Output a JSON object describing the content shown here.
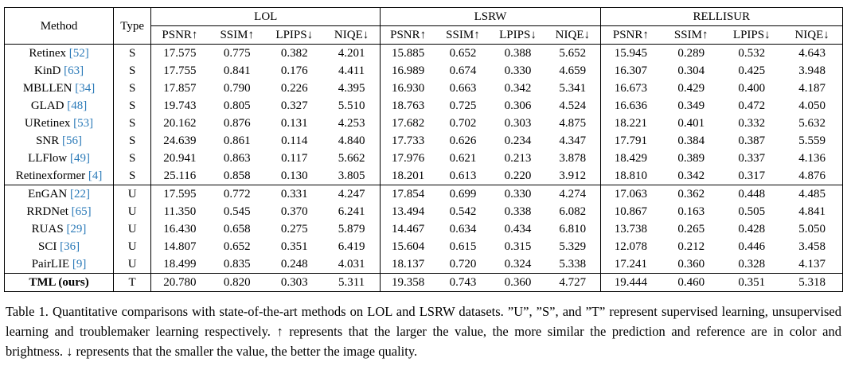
{
  "colors": {
    "citation": "#2b7ab8",
    "text": "#000000",
    "background": "#ffffff"
  },
  "table": {
    "method_header": "Method",
    "type_header": "Type",
    "groups": [
      "LOL",
      "LSRW",
      "RELLISUR"
    ],
    "metrics": [
      "PSNR↑",
      "SSIM↑",
      "LPIPS↓",
      "NIQE↓"
    ],
    "rows": [
      {
        "method": "Retinex",
        "cite": "[52]",
        "type": "S",
        "method_bold": false,
        "section_start": false,
        "values": [
          "17.575",
          "0.775",
          "0.382",
          "4.201",
          "15.885",
          "0.652",
          "0.388",
          "5.652",
          "15.945",
          "0.289",
          "0.532",
          "4.643"
        ],
        "bold": []
      },
      {
        "method": "KinD",
        "cite": "[63]",
        "type": "S",
        "method_bold": false,
        "section_start": false,
        "values": [
          "17.755",
          "0.841",
          "0.176",
          "4.411",
          "16.989",
          "0.674",
          "0.330",
          "4.659",
          "16.307",
          "0.304",
          "0.425",
          "3.948"
        ],
        "bold": []
      },
      {
        "method": "MBLLEN",
        "cite": "[34]",
        "type": "S",
        "method_bold": false,
        "section_start": false,
        "values": [
          "17.857",
          "0.790",
          "0.226",
          "4.395",
          "16.930",
          "0.663",
          "0.342",
          "5.341",
          "16.673",
          "0.429",
          "0.400",
          "4.187"
        ],
        "bold": []
      },
      {
        "method": "GLAD",
        "cite": "[48]",
        "type": "S",
        "method_bold": false,
        "section_start": false,
        "values": [
          "19.743",
          "0.805",
          "0.327",
          "5.510",
          "18.763",
          "0.725",
          "0.306",
          "4.524",
          "16.636",
          "0.349",
          "0.472",
          "4.050"
        ],
        "bold": []
      },
      {
        "method": "URetinex",
        "cite": "[53]",
        "type": "S",
        "method_bold": false,
        "section_start": false,
        "values": [
          "20.162",
          "0.876",
          "0.131",
          "4.253",
          "17.682",
          "0.702",
          "0.303",
          "4.875",
          "18.221",
          "0.401",
          "0.332",
          "5.632"
        ],
        "bold": [
          1
        ]
      },
      {
        "method": "SNR",
        "cite": "[56]",
        "type": "S",
        "method_bold": false,
        "section_start": false,
        "values": [
          "24.639",
          "0.861",
          "0.114",
          "4.840",
          "17.733",
          "0.626",
          "0.234",
          "4.347",
          "17.791",
          "0.384",
          "0.387",
          "5.559"
        ],
        "bold": [
          2
        ]
      },
      {
        "method": "LLFlow",
        "cite": "[49]",
        "type": "S",
        "method_bold": false,
        "section_start": false,
        "values": [
          "20.941",
          "0.863",
          "0.117",
          "5.662",
          "17.976",
          "0.621",
          "0.213",
          "3.878",
          "18.429",
          "0.389",
          "0.337",
          "4.136"
        ],
        "bold": [
          6,
          7
        ]
      },
      {
        "method": "Retinexformer",
        "cite": "[4]",
        "type": "S",
        "method_bold": false,
        "section_start": false,
        "values": [
          "25.116",
          "0.858",
          "0.130",
          "3.805",
          "18.201",
          "0.613",
          "0.220",
          "3.912",
          "18.810",
          "0.342",
          "0.317",
          "4.876"
        ],
        "bold": [
          0,
          3,
          10
        ]
      },
      {
        "method": "EnGAN",
        "cite": "[22]",
        "type": "U",
        "method_bold": false,
        "section_start": true,
        "values": [
          "17.595",
          "0.772",
          "0.331",
          "4.247",
          "17.854",
          "0.699",
          "0.330",
          "4.274",
          "17.063",
          "0.362",
          "0.448",
          "4.485"
        ],
        "bold": []
      },
      {
        "method": "RRDNet",
        "cite": "[65]",
        "type": "U",
        "method_bold": false,
        "section_start": false,
        "values": [
          "11.350",
          "0.545",
          "0.370",
          "6.241",
          "13.494",
          "0.542",
          "0.338",
          "6.082",
          "10.867",
          "0.163",
          "0.505",
          "4.841"
        ],
        "bold": []
      },
      {
        "method": "RUAS",
        "cite": "[29]",
        "type": "U",
        "method_bold": false,
        "section_start": false,
        "values": [
          "16.430",
          "0.658",
          "0.275",
          "5.879",
          "14.467",
          "0.634",
          "0.434",
          "6.810",
          "13.738",
          "0.265",
          "0.428",
          "5.050"
        ],
        "bold": []
      },
      {
        "method": "SCI",
        "cite": "[36]",
        "type": "U",
        "method_bold": false,
        "section_start": false,
        "values": [
          "14.807",
          "0.652",
          "0.351",
          "6.419",
          "15.604",
          "0.615",
          "0.315",
          "5.329",
          "12.078",
          "0.212",
          "0.446",
          "3.458"
        ],
        "bold": [
          11
        ]
      },
      {
        "method": "PairLIE",
        "cite": "[9]",
        "type": "U",
        "method_bold": false,
        "section_start": false,
        "values": [
          "18.499",
          "0.835",
          "0.248",
          "4.031",
          "18.137",
          "0.720",
          "0.324",
          "5.338",
          "17.241",
          "0.360",
          "0.328",
          "4.137"
        ],
        "bold": []
      },
      {
        "method": "TML (ours)",
        "cite": "",
        "type": "T",
        "method_bold": true,
        "section_start": true,
        "values": [
          "20.780",
          "0.820",
          "0.303",
          "5.311",
          "19.358",
          "0.743",
          "0.360",
          "4.727",
          "19.444",
          "0.460",
          "0.351",
          "5.318"
        ],
        "bold": [
          4,
          5,
          8,
          9
        ]
      }
    ]
  },
  "caption": {
    "text": "Table 1.  Quantitative comparisons with state-of-the-art methods on LOL and LSRW datasets.  ”U”, ”S”, and ”T” represent supervised learning, unsupervised learning and troublemaker learning respectively. ↑ represents that the larger the value, the more similar the prediction and reference are in color and brightness. ↓ represents that the smaller the value, the better the image quality."
  }
}
